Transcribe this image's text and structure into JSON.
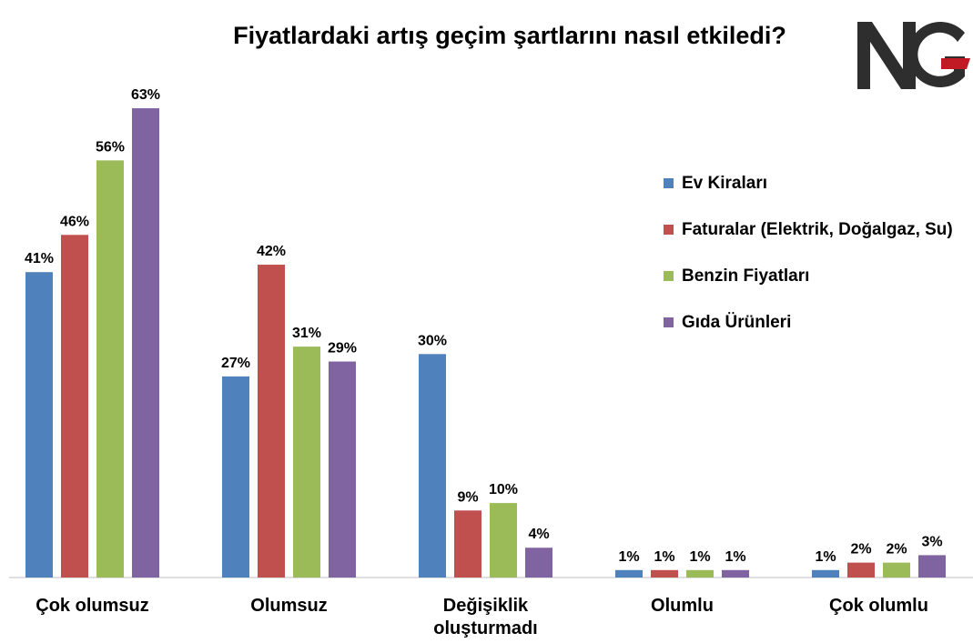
{
  "chart_data": {
    "type": "bar",
    "title": "Fiyatlardaki artış geçim şartlarını nasıl etkiledi?",
    "categories": [
      [
        "Çok olumsuz"
      ],
      [
        "Olumsuz"
      ],
      [
        "Değişiklik",
        "oluşturmadı"
      ],
      [
        "Olumlu"
      ],
      [
        "Çok olumlu"
      ]
    ],
    "series": [
      {
        "name": "Ev Kiraları",
        "color": "#4F81BD",
        "values": [
          41,
          27,
          30,
          1,
          1
        ]
      },
      {
        "name": "Faturalar (Elektrik, Doğalgaz, Su)",
        "color": "#C0504D",
        "values": [
          46,
          42,
          9,
          1,
          2
        ]
      },
      {
        "name": "Benzin Fiyatları",
        "color": "#9BBB59",
        "values": [
          56,
          31,
          10,
          1,
          2
        ]
      },
      {
        "name": "Gıda Ürünleri",
        "color": "#8064A2",
        "values": [
          63,
          29,
          4,
          1,
          3
        ]
      }
    ],
    "value_suffix": "%",
    "ylim": [
      0,
      65
    ],
    "grid": false,
    "legend_position": "right"
  },
  "logo": {
    "text": "NG",
    "icon": "ng-logo"
  }
}
